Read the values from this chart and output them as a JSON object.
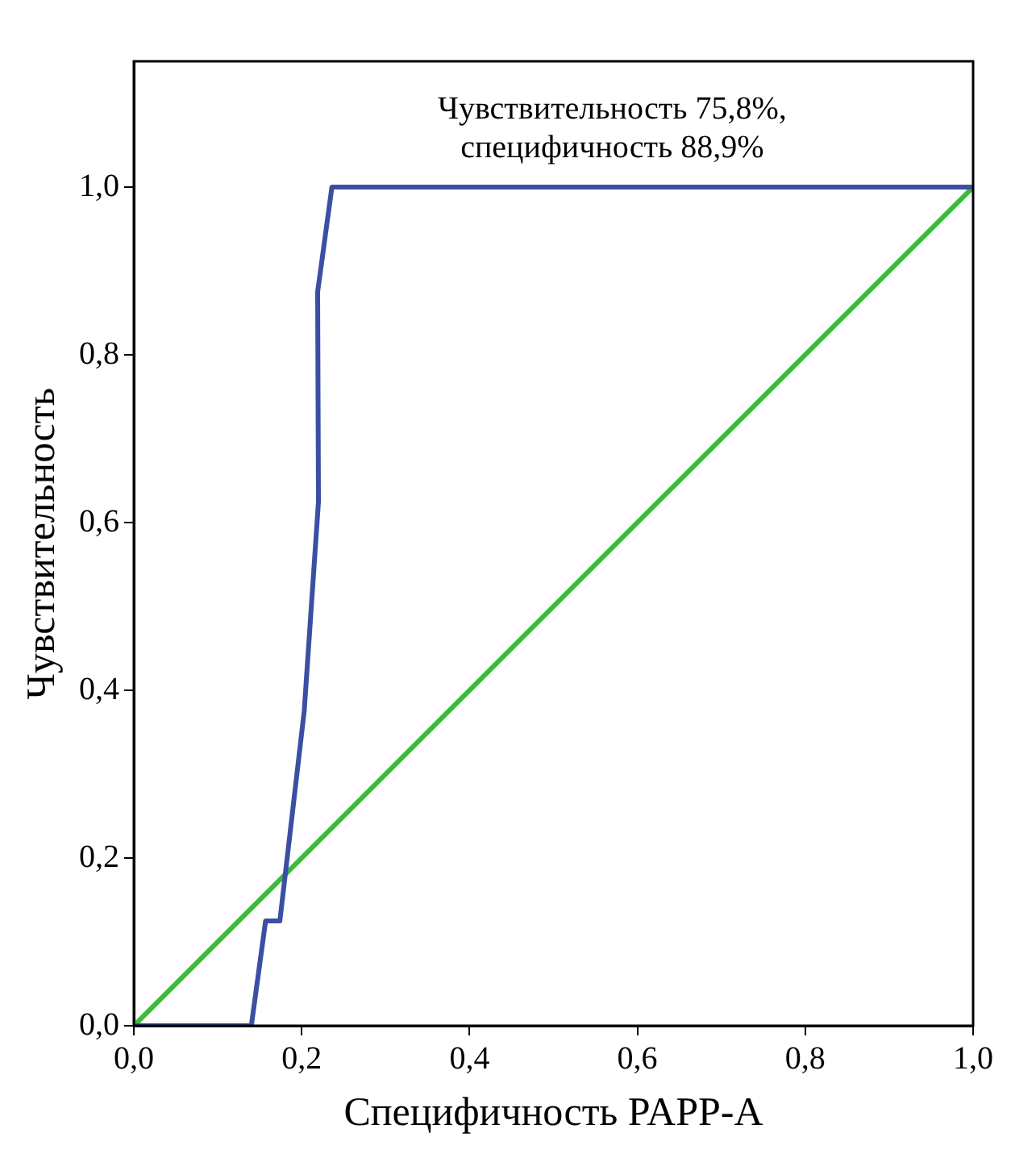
{
  "chart_data": {
    "type": "line",
    "xlabel": "Специфичность PAPP-A",
    "ylabel": "Чувствительность",
    "annotations": [
      "Чувствительность 75,8%,\nспецифичность 88,9%"
    ],
    "series": [
      {
        "color": "#3b4fa3",
        "x": [
          0,
          0.14,
          0.157,
          0.174,
          0.203,
          0.22,
          0.219,
          0.236,
          1
        ],
        "values": [
          0,
          0,
          0.125,
          0.125,
          0.375,
          0.625,
          0.875,
          1,
          1
        ]
      },
      {
        "color": "#3cba3c",
        "x": [
          0,
          1
        ],
        "values": [
          0,
          1
        ]
      }
    ],
    "xlim": [
      0,
      1
    ],
    "ylim": [
      0,
      1.15
    ],
    "xticks": [
      {
        "value": 0,
        "label": "0,0"
      },
      {
        "value": 0.2,
        "label": "0,2"
      },
      {
        "value": 0.4,
        "label": "0,4"
      },
      {
        "value": 0.6,
        "label": "0,6"
      },
      {
        "value": 0.8,
        "label": "0,8"
      },
      {
        "value": 1,
        "label": "1,0"
      }
    ],
    "yticks": [
      {
        "value": 0,
        "label": "0,0"
      },
      {
        "value": 0.2,
        "label": "0,2"
      },
      {
        "value": 0.4,
        "label": "0,4"
      },
      {
        "value": 0.6,
        "label": "0,6"
      },
      {
        "value": 0.8,
        "label": "0,8"
      },
      {
        "value": 1,
        "label": "1,0"
      }
    ],
    "grid": false,
    "legend": false,
    "marker": "none",
    "line_style": "solid"
  }
}
